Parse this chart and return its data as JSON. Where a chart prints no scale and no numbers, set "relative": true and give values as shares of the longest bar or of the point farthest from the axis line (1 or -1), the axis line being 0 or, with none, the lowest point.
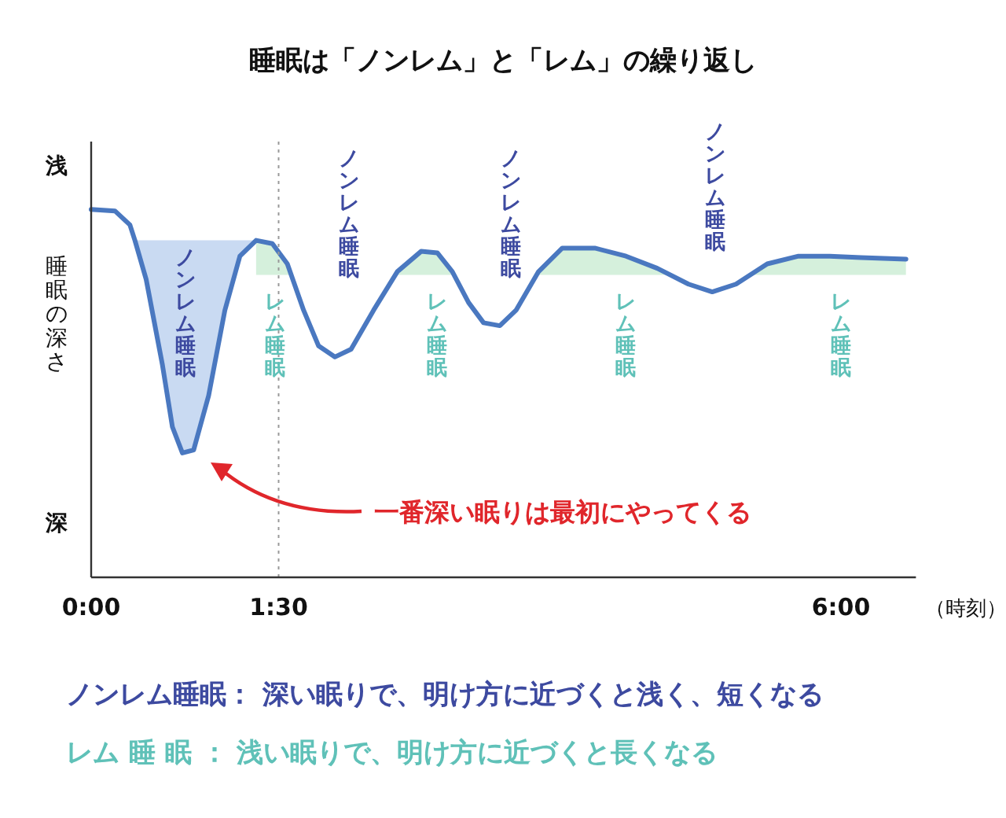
{
  "chart_data": {
    "type": "line",
    "title": "睡眠は「ノンレム」と「レム」の繰り返し",
    "xlabel": "（時刻）",
    "ylabel": "睡眠の深さ",
    "relative": true,
    "x": [
      0,
      0.19,
      0.31,
      0.35,
      0.44,
      0.57,
      0.65,
      0.73,
      0.82,
      0.94,
      1.07,
      1.19,
      1.32,
      1.45,
      1.57,
      1.7,
      1.82,
      1.95,
      2.08,
      2.26,
      2.45,
      2.64,
      2.77,
      2.89,
      3.02,
      3.14,
      3.27,
      3.4,
      3.58,
      3.77,
      4.03,
      4.28,
      4.53,
      4.78,
      4.97,
      5.16,
      5.41,
      5.66,
      5.91,
      6.16,
      6.52
    ],
    "xlim": [
      0,
      6.6
    ],
    "xticks": [
      {
        "value": 0,
        "label": "0:00"
      },
      {
        "value": 1.5,
        "label": "1:30"
      },
      {
        "value": 6,
        "label": "6:00"
      }
    ],
    "series": [
      {
        "color": "#4a78c0",
        "values": [
          1,
          0.996,
          0.958,
          0.916,
          0.81,
          0.578,
          0.409,
          0.338,
          0.346,
          0.494,
          0.726,
          0.873,
          0.916,
          0.907,
          0.852,
          0.726,
          0.629,
          0.599,
          0.62,
          0.726,
          0.831,
          0.886,
          0.882,
          0.831,
          0.747,
          0.692,
          0.684,
          0.726,
          0.831,
          0.895,
          0.895,
          0.873,
          0.84,
          0.797,
          0.776,
          0.797,
          0.852,
          0.873,
          0.873,
          0.869,
          0.865
        ]
      }
    ],
    "ref_lines": [
      {
        "axis": "x",
        "value": 1.5,
        "color": "#999999",
        "line_style": "dotted"
      }
    ],
    "annotations": [
      "浅",
      "深",
      "ノンレム睡眠： 深い眠りで、明け方に近づくと浅く、短くなる",
      "レム 睡 眠 ： 浅い眠りで、明け方に近づくと長くなる",
      "ノンレム睡眠",
      "レム睡眠",
      "ノンレム睡眠",
      "レム睡眠",
      "ノンレム睡眠",
      "レム睡眠",
      "ノンレム睡眠",
      "レム睡眠",
      "一番深い眠りは最初にやってくる"
    ]
  }
}
